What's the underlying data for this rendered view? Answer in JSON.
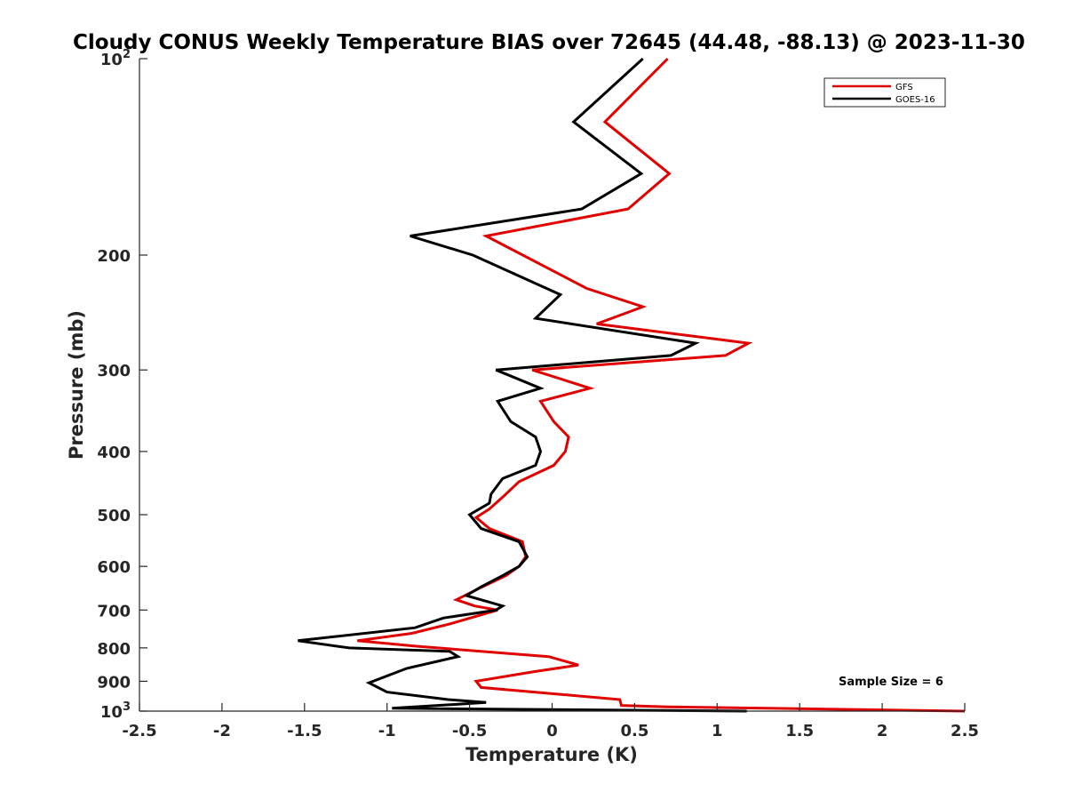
{
  "chart_data": {
    "type": "line",
    "title": "Cloudy CONUS Weekly Temperature BIAS over 72645 (44.48, -88.13) @ 2023-11-30",
    "xlabel": "Temperature (K)",
    "ylabel": "Pressure (mb)",
    "xlim": [
      -2.5,
      2.5
    ],
    "ylim": [
      100,
      1000
    ],
    "y_scale": "log",
    "y_reversed": true,
    "grid": false,
    "legend_position": "top-right",
    "xticks": [
      "-2.5",
      "-2",
      "-1.5",
      "-1",
      "-0.5",
      "0",
      "0.5",
      "1",
      "1.5",
      "2",
      "2.5"
    ],
    "x_tick_values": [
      -2.5,
      -2,
      -1.5,
      -1,
      -0.5,
      0,
      0.5,
      1,
      1.5,
      2,
      2.5
    ],
    "y_tick_values": [
      100,
      200,
      300,
      400,
      500,
      600,
      700,
      800,
      900,
      1000
    ],
    "y_tick_labels": [
      {
        "base": "10",
        "exp": "2"
      },
      {
        "base": "200",
        "exp": ""
      },
      {
        "base": "300",
        "exp": ""
      },
      {
        "base": "400",
        "exp": ""
      },
      {
        "base": "500",
        "exp": ""
      },
      {
        "base": "600",
        "exp": ""
      },
      {
        "base": "700",
        "exp": ""
      },
      {
        "base": "800",
        "exp": ""
      },
      {
        "base": "900",
        "exp": ""
      },
      {
        "base": "10",
        "exp": "3"
      }
    ],
    "annotation": "Sample Size = 6",
    "series": [
      {
        "name": "GFS",
        "color": "#e00000",
        "points": [
          [
            0.7,
            100
          ],
          [
            0.32,
            125
          ],
          [
            0.71,
            150
          ],
          [
            0.46,
            170
          ],
          [
            -0.4,
            187
          ],
          [
            0.21,
            225
          ],
          [
            0.55,
            240
          ],
          [
            0.27,
            255
          ],
          [
            1.19,
            273
          ],
          [
            1.05,
            285
          ],
          [
            -0.12,
            300
          ],
          [
            0.23,
            320
          ],
          [
            -0.07,
            335
          ],
          [
            0.01,
            360
          ],
          [
            0.1,
            380
          ],
          [
            0.08,
            400
          ],
          [
            0.01,
            420
          ],
          [
            -0.2,
            445
          ],
          [
            -0.3,
            470
          ],
          [
            -0.38,
            490
          ],
          [
            -0.46,
            505
          ],
          [
            -0.38,
            525
          ],
          [
            -0.18,
            550
          ],
          [
            -0.16,
            580
          ],
          [
            -0.2,
            600
          ],
          [
            -0.28,
            620
          ],
          [
            -0.45,
            650
          ],
          [
            -0.58,
            675
          ],
          [
            -0.47,
            690
          ],
          [
            -0.33,
            700
          ],
          [
            -0.62,
            735
          ],
          [
            -0.85,
            760
          ],
          [
            -1.18,
            780
          ],
          [
            -0.83,
            795
          ],
          [
            -0.02,
            825
          ],
          [
            0.16,
            850
          ],
          [
            -0.11,
            870
          ],
          [
            -0.46,
            900
          ],
          [
            -0.43,
            920
          ],
          [
            0.41,
            960
          ],
          [
            0.42,
            980
          ],
          [
            0.7,
            985
          ],
          [
            2.5,
            1000
          ]
        ]
      },
      {
        "name": "GOES-16",
        "color": "#000000",
        "points": [
          [
            0.55,
            100
          ],
          [
            0.13,
            125
          ],
          [
            0.54,
            150
          ],
          [
            0.18,
            170
          ],
          [
            -0.86,
            187
          ],
          [
            -0.48,
            200
          ],
          [
            0.05,
            230
          ],
          [
            -0.1,
            250
          ],
          [
            0.87,
            273
          ],
          [
            0.72,
            285
          ],
          [
            -0.34,
            300
          ],
          [
            -0.07,
            320
          ],
          [
            -0.33,
            335
          ],
          [
            -0.25,
            360
          ],
          [
            -0.1,
            380
          ],
          [
            -0.07,
            400
          ],
          [
            -0.1,
            420
          ],
          [
            -0.3,
            440
          ],
          [
            -0.37,
            465
          ],
          [
            -0.38,
            480
          ],
          [
            -0.5,
            500
          ],
          [
            -0.43,
            525
          ],
          [
            -0.2,
            550
          ],
          [
            -0.15,
            580
          ],
          [
            -0.2,
            600
          ],
          [
            -0.3,
            620
          ],
          [
            -0.43,
            645
          ],
          [
            -0.52,
            665
          ],
          [
            -0.3,
            690
          ],
          [
            -0.34,
            700
          ],
          [
            -0.66,
            720
          ],
          [
            -0.83,
            745
          ],
          [
            -1.54,
            780
          ],
          [
            -1.23,
            800
          ],
          [
            -0.62,
            810
          ],
          [
            -0.57,
            825
          ],
          [
            -0.88,
            860
          ],
          [
            -1.11,
            905
          ],
          [
            -1.0,
            935
          ],
          [
            -0.63,
            960
          ],
          [
            -0.4,
            970
          ],
          [
            -0.97,
            990
          ],
          [
            1.18,
            1000
          ]
        ]
      }
    ]
  }
}
